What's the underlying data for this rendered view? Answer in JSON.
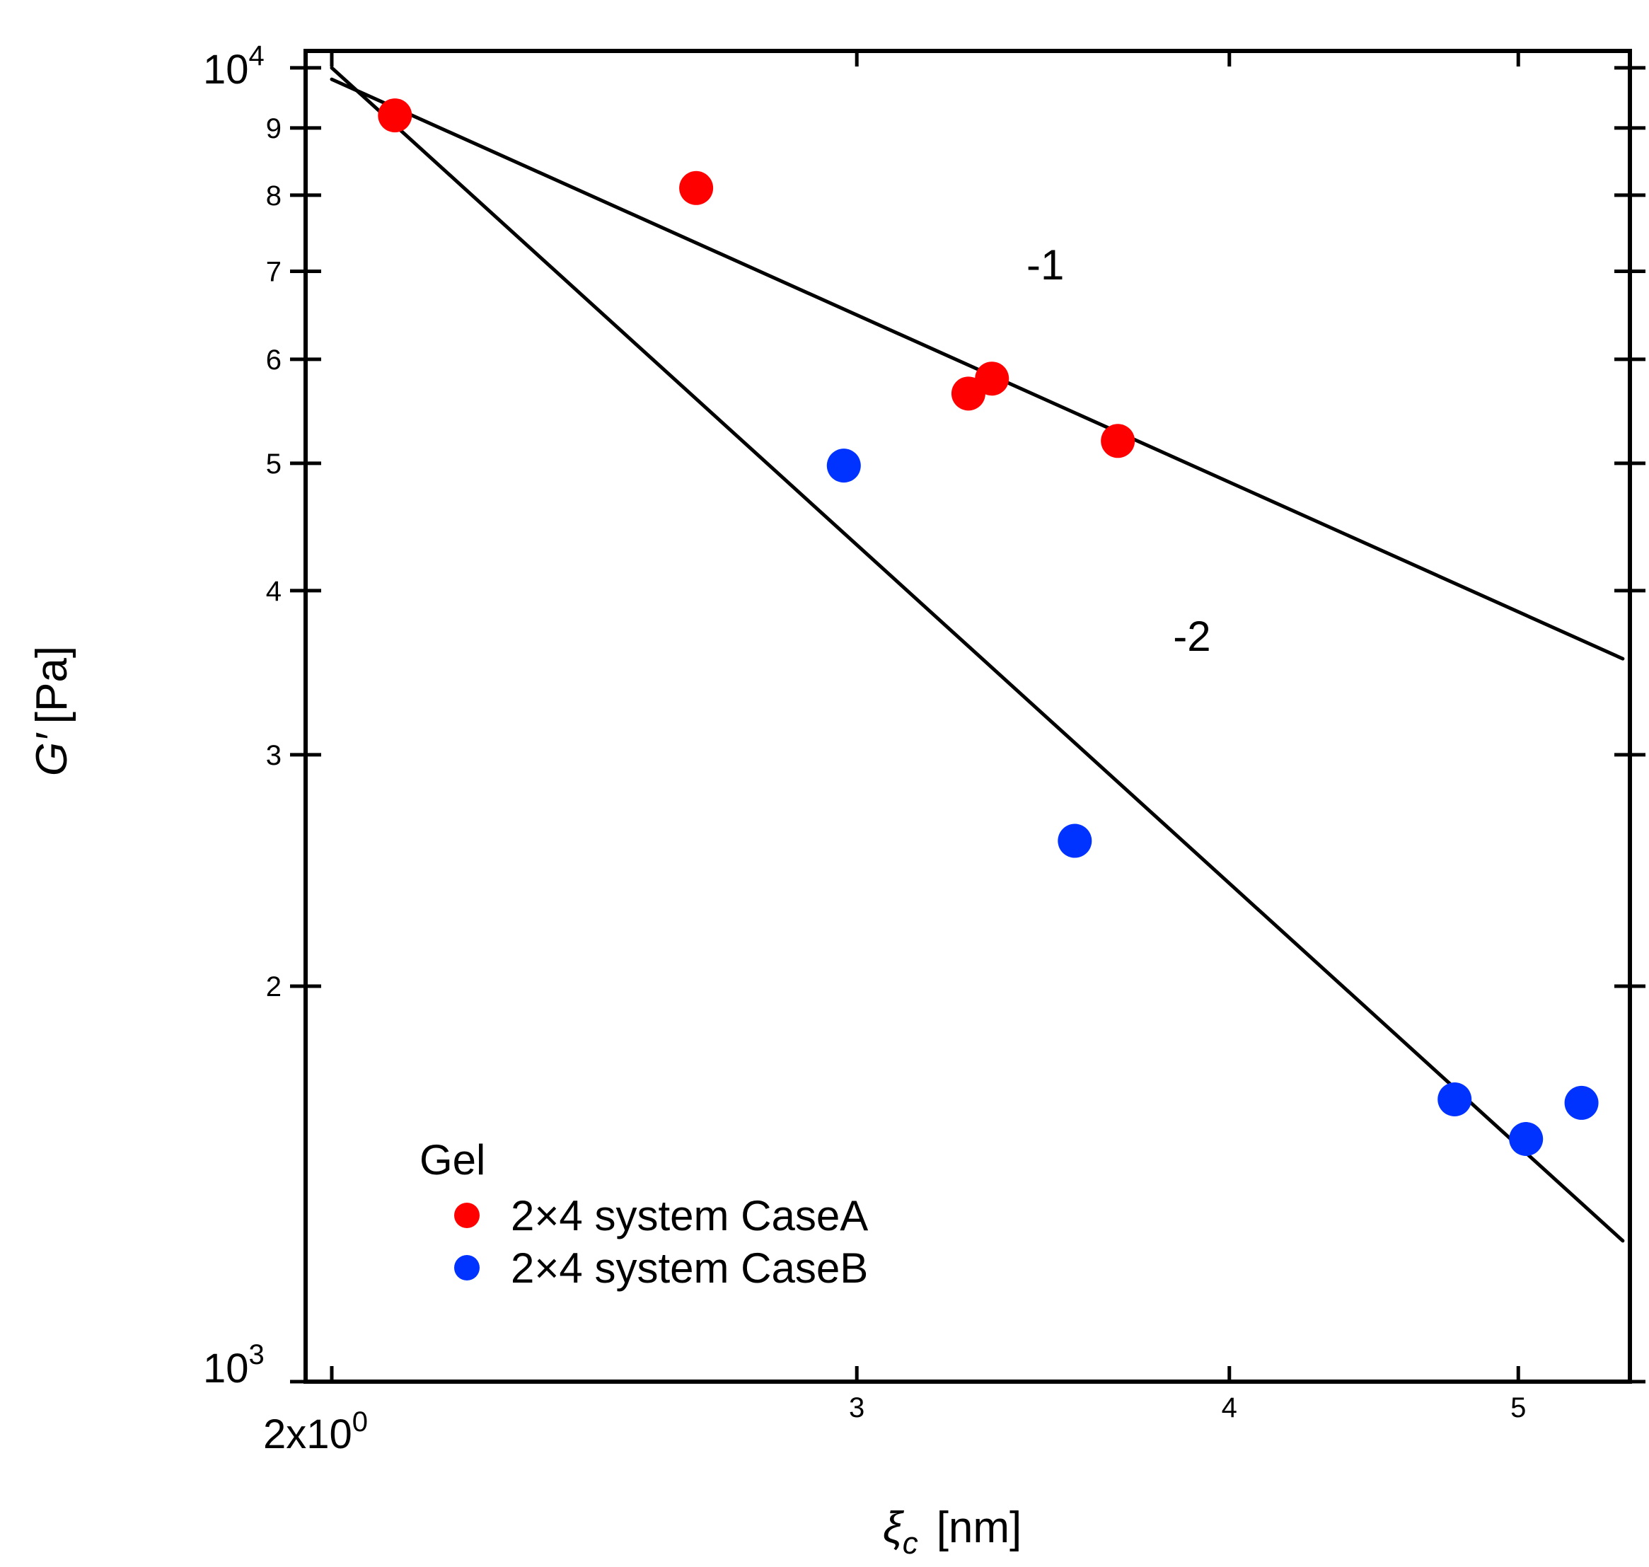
{
  "chart_data": {
    "type": "scatter",
    "xscale": "log",
    "yscale": "log",
    "xlim": [
      1.96,
      5.45
    ],
    "ylim": [
      1000,
      10300
    ],
    "xlabel": "ξc [nm]",
    "xlabel_symbol": "ξ",
    "xlabel_subscript": "c",
    "xlabel_unit": "[nm]",
    "ylabel": "G′ [Pa]",
    "ylabel_symbol": "G′",
    "ylabel_unit": "[Pa]",
    "x_ticks": [
      {
        "value": 3,
        "label": "3"
      },
      {
        "value": 4,
        "label": "4"
      },
      {
        "value": 5,
        "label": "5"
      }
    ],
    "x_origin_label": {
      "value": 2,
      "base": "2x10",
      "exp": "0"
    },
    "y_ticks": [
      {
        "value": 2000,
        "label": "2"
      },
      {
        "value": 3000,
        "label": "3"
      },
      {
        "value": 4000,
        "label": "4"
      },
      {
        "value": 5000,
        "label": "5"
      },
      {
        "value": 6000,
        "label": "6"
      },
      {
        "value": 7000,
        "label": "7"
      },
      {
        "value": 8000,
        "label": "8"
      },
      {
        "value": 9000,
        "label": "9"
      }
    ],
    "y_decades": [
      {
        "value": 1000,
        "base": "10",
        "exp": "3"
      },
      {
        "value": 10000,
        "base": "10",
        "exp": "4"
      }
    ],
    "series": [
      {
        "name": "2×4 system CaseA",
        "color": "#ff0000",
        "x": [
          2.1,
          2.65,
          3.27,
          3.33,
          3.67
        ],
        "y": [
          9200,
          8100,
          5650,
          5800,
          5200
        ]
      },
      {
        "name": "2×4 system CaseB",
        "color": "#0033ff",
        "x": [
          2.97,
          3.55,
          4.76,
          5.03,
          5.25
        ],
        "y": [
          4980,
          2580,
          1640,
          1530,
          1630
        ]
      }
    ],
    "lines": [
      {
        "slope": -1,
        "x": [
          2.0,
          5.42
        ],
        "y": [
          9800,
          3550
        ]
      },
      {
        "slope": -2,
        "x": [
          2.0,
          5.42
        ],
        "y": [
          10000,
          1280
        ]
      }
    ],
    "annotations": [
      {
        "text": "-1",
        "x": 3.42,
        "y": 6900
      },
      {
        "text": "-2",
        "x": 3.83,
        "y": 3600
      }
    ],
    "legend": {
      "title": "Gel",
      "placement": "bottom-left",
      "entries": [
        "2×4 system CaseA",
        "2×4 system CaseB"
      ]
    }
  }
}
